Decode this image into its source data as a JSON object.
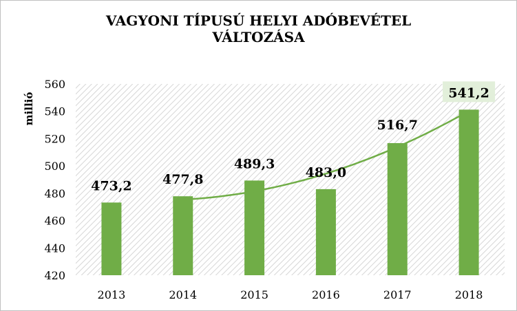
{
  "chart_data": {
    "type": "bar",
    "title_lines": [
      "VAGYONI TÍPUSÚ HELYI ADÓBEVÉTEL",
      "VÁLTOZÁSA"
    ],
    "ylabel": "millió",
    "categories": [
      "2013",
      "2014",
      "2015",
      "2016",
      "2017",
      "2018"
    ],
    "values": [
      473.2,
      477.8,
      489.3,
      483.0,
      516.7,
      541.2
    ],
    "value_labels": [
      "473,2",
      "477,8",
      "489,3",
      "483,0",
      "516,7",
      "541,2"
    ],
    "trendline": true,
    "ylim": [
      420,
      560
    ],
    "yticks": [
      420,
      440,
      460,
      480,
      500,
      520,
      540,
      560
    ],
    "grid": false,
    "plot_background": "hatched",
    "bar_color": "#70ad47",
    "trend_color": "#70ad47",
    "highlight_label_background": "#e2efda"
  }
}
